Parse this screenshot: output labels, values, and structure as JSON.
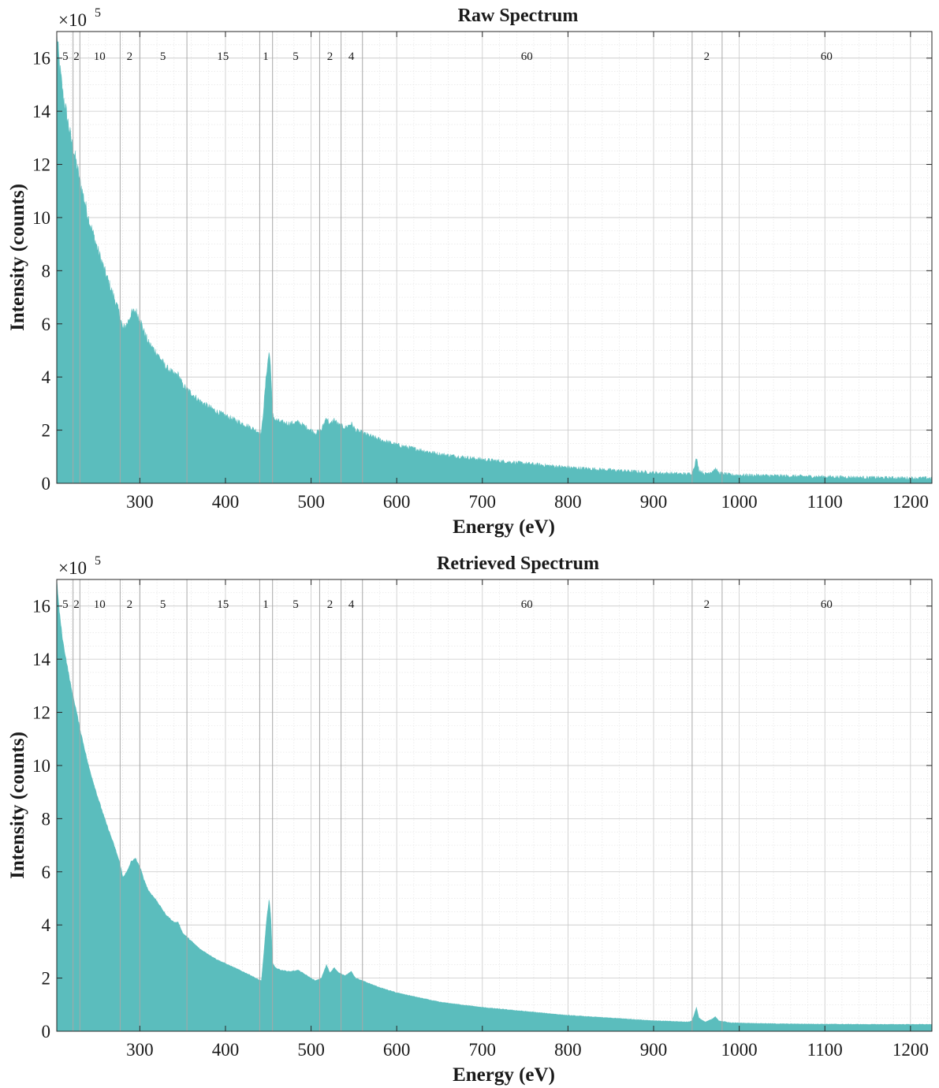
{
  "figure": {
    "accent_color": "#5bbdbd"
  },
  "chart_data": [
    {
      "type": "area",
      "title": "Raw Spectrum",
      "xlabel": "Energy (eV)",
      "ylabel": "Intensity (counts)",
      "y_exponent_label": "×10",
      "y_exponent": "5",
      "xlim": [
        203,
        1225
      ],
      "ylim": [
        0,
        1.7
      ],
      "x_ticks": [
        300,
        400,
        500,
        600,
        700,
        800,
        900,
        1000,
        1100,
        1200
      ],
      "x_tick_labels": [
        "300",
        "400",
        "500",
        "600",
        "700",
        "800",
        "900",
        "1000",
        "1100",
        "1200"
      ],
      "y_ticks": [
        0,
        0.2,
        0.4,
        0.6,
        0.8,
        1.0,
        1.2,
        1.4,
        1.6
      ],
      "y_tick_labels": [
        "0",
        "2",
        "4",
        "6",
        "8",
        "10",
        "12",
        "14",
        "16"
      ],
      "grid": true,
      "noisy": true,
      "region_boundaries": [
        222,
        230,
        277,
        300,
        355,
        440,
        455,
        510,
        535,
        560,
        945,
        980
      ],
      "region_labels": [
        {
          "x": 213,
          "text": "5"
        },
        {
          "x": 226,
          "text": "2"
        },
        {
          "x": 253,
          "text": "10"
        },
        {
          "x": 288,
          "text": "2"
        },
        {
          "x": 327,
          "text": "5"
        },
        {
          "x": 397,
          "text": "15"
        },
        {
          "x": 447,
          "text": "1"
        },
        {
          "x": 482,
          "text": "5"
        },
        {
          "x": 522,
          "text": "2"
        },
        {
          "x": 547,
          "text": "4"
        },
        {
          "x": 752,
          "text": "60"
        },
        {
          "x": 962,
          "text": "2"
        },
        {
          "x": 1102,
          "text": "60"
        }
      ],
      "series": [
        {
          "color": "#5bbdbd",
          "points": [
            [
              203,
              1.7
            ],
            [
              206,
              1.58
            ],
            [
              210,
              1.47
            ],
            [
              215,
              1.38
            ],
            [
              220,
              1.29
            ],
            [
              225,
              1.22
            ],
            [
              230,
              1.14
            ],
            [
              235,
              1.07
            ],
            [
              240,
              1.0
            ],
            [
              250,
              0.89
            ],
            [
              260,
              0.79
            ],
            [
              270,
              0.7
            ],
            [
              277,
              0.63
            ],
            [
              280,
              0.58
            ],
            [
              285,
              0.6
            ],
            [
              290,
              0.64
            ],
            [
              295,
              0.65
            ],
            [
              300,
              0.62
            ],
            [
              305,
              0.57
            ],
            [
              310,
              0.53
            ],
            [
              320,
              0.49
            ],
            [
              330,
              0.44
            ],
            [
              340,
              0.41
            ],
            [
              345,
              0.41
            ],
            [
              350,
              0.37
            ],
            [
              360,
              0.34
            ],
            [
              370,
              0.31
            ],
            [
              380,
              0.29
            ],
            [
              390,
              0.27
            ],
            [
              400,
              0.255
            ],
            [
              410,
              0.24
            ],
            [
              420,
              0.225
            ],
            [
              430,
              0.21
            ],
            [
              438,
              0.195
            ],
            [
              442,
              0.19
            ],
            [
              445,
              0.3
            ],
            [
              448,
              0.42
            ],
            [
              450,
              0.47
            ],
            [
              451,
              0.5
            ],
            [
              453,
              0.43
            ],
            [
              455,
              0.26
            ],
            [
              458,
              0.24
            ],
            [
              465,
              0.23
            ],
            [
              475,
              0.225
            ],
            [
              485,
              0.23
            ],
            [
              495,
              0.21
            ],
            [
              505,
              0.19
            ],
            [
              512,
              0.2
            ],
            [
              518,
              0.25
            ],
            [
              522,
              0.22
            ],
            [
              527,
              0.24
            ],
            [
              532,
              0.22
            ],
            [
              540,
              0.21
            ],
            [
              547,
              0.225
            ],
            [
              552,
              0.2
            ],
            [
              560,
              0.19
            ],
            [
              580,
              0.165
            ],
            [
              600,
              0.145
            ],
            [
              650,
              0.11
            ],
            [
              700,
              0.09
            ],
            [
              750,
              0.075
            ],
            [
              800,
              0.06
            ],
            [
              850,
              0.05
            ],
            [
              900,
              0.04
            ],
            [
              940,
              0.035
            ],
            [
              945,
              0.04
            ],
            [
              948,
              0.07
            ],
            [
              950,
              0.095
            ],
            [
              953,
              0.05
            ],
            [
              960,
              0.035
            ],
            [
              968,
              0.045
            ],
            [
              972,
              0.055
            ],
            [
              976,
              0.04
            ],
            [
              990,
              0.032
            ],
            [
              1050,
              0.028
            ],
            [
              1100,
              0.025
            ],
            [
              1150,
              0.022
            ],
            [
              1200,
              0.02
            ],
            [
              1225,
              0.02
            ]
          ]
        }
      ]
    },
    {
      "type": "area",
      "title": "Retrieved Spectrum",
      "xlabel": "Energy (eV)",
      "ylabel": "Intensity (counts)",
      "y_exponent_label": "×10",
      "y_exponent": "5",
      "xlim": [
        203,
        1225
      ],
      "ylim": [
        0,
        1.7
      ],
      "x_ticks": [
        300,
        400,
        500,
        600,
        700,
        800,
        900,
        1000,
        1100,
        1200
      ],
      "x_tick_labels": [
        "300",
        "400",
        "500",
        "600",
        "700",
        "800",
        "900",
        "1000",
        "1100",
        "1200"
      ],
      "y_ticks": [
        0,
        0.2,
        0.4,
        0.6,
        0.8,
        1.0,
        1.2,
        1.4,
        1.6
      ],
      "y_tick_labels": [
        "0",
        "2",
        "4",
        "6",
        "8",
        "10",
        "12",
        "14",
        "16"
      ],
      "grid": true,
      "noisy": false,
      "region_boundaries": [
        222,
        230,
        277,
        300,
        355,
        440,
        455,
        510,
        535,
        560,
        945,
        980
      ],
      "region_labels": [
        {
          "x": 213,
          "text": "5"
        },
        {
          "x": 226,
          "text": "2"
        },
        {
          "x": 253,
          "text": "10"
        },
        {
          "x": 288,
          "text": "2"
        },
        {
          "x": 327,
          "text": "5"
        },
        {
          "x": 397,
          "text": "15"
        },
        {
          "x": 447,
          "text": "1"
        },
        {
          "x": 482,
          "text": "5"
        },
        {
          "x": 522,
          "text": "2"
        },
        {
          "x": 547,
          "text": "4"
        },
        {
          "x": 752,
          "text": "60"
        },
        {
          "x": 962,
          "text": "2"
        },
        {
          "x": 1102,
          "text": "60"
        }
      ],
      "series": [
        {
          "color": "#5bbdbd",
          "points": [
            [
              203,
              1.7
            ],
            [
              206,
              1.58
            ],
            [
              210,
              1.47
            ],
            [
              215,
              1.38
            ],
            [
              220,
              1.29
            ],
            [
              225,
              1.22
            ],
            [
              230,
              1.14
            ],
            [
              235,
              1.07
            ],
            [
              240,
              1.0
            ],
            [
              250,
              0.89
            ],
            [
              260,
              0.79
            ],
            [
              270,
              0.7
            ],
            [
              277,
              0.63
            ],
            [
              280,
              0.58
            ],
            [
              285,
              0.6
            ],
            [
              290,
              0.64
            ],
            [
              295,
              0.65
            ],
            [
              300,
              0.62
            ],
            [
              305,
              0.57
            ],
            [
              310,
              0.53
            ],
            [
              320,
              0.49
            ],
            [
              330,
              0.44
            ],
            [
              340,
              0.41
            ],
            [
              345,
              0.41
            ],
            [
              350,
              0.37
            ],
            [
              360,
              0.34
            ],
            [
              370,
              0.31
            ],
            [
              380,
              0.29
            ],
            [
              390,
              0.27
            ],
            [
              400,
              0.255
            ],
            [
              410,
              0.24
            ],
            [
              420,
              0.225
            ],
            [
              430,
              0.21
            ],
            [
              438,
              0.195
            ],
            [
              442,
              0.19
            ],
            [
              445,
              0.3
            ],
            [
              448,
              0.42
            ],
            [
              450,
              0.47
            ],
            [
              451,
              0.5
            ],
            [
              453,
              0.43
            ],
            [
              455,
              0.26
            ],
            [
              458,
              0.24
            ],
            [
              465,
              0.23
            ],
            [
              475,
              0.225
            ],
            [
              485,
              0.23
            ],
            [
              495,
              0.21
            ],
            [
              505,
              0.19
            ],
            [
              512,
              0.2
            ],
            [
              518,
              0.25
            ],
            [
              522,
              0.22
            ],
            [
              527,
              0.24
            ],
            [
              532,
              0.22
            ],
            [
              540,
              0.21
            ],
            [
              547,
              0.225
            ],
            [
              552,
              0.2
            ],
            [
              560,
              0.19
            ],
            [
              580,
              0.165
            ],
            [
              600,
              0.145
            ],
            [
              650,
              0.11
            ],
            [
              700,
              0.09
            ],
            [
              750,
              0.075
            ],
            [
              800,
              0.06
            ],
            [
              850,
              0.05
            ],
            [
              900,
              0.04
            ],
            [
              940,
              0.035
            ],
            [
              945,
              0.04
            ],
            [
              948,
              0.07
            ],
            [
              950,
              0.09
            ],
            [
              953,
              0.05
            ],
            [
              960,
              0.035
            ],
            [
              968,
              0.045
            ],
            [
              972,
              0.055
            ],
            [
              976,
              0.04
            ],
            [
              990,
              0.032
            ],
            [
              1050,
              0.028
            ],
            [
              1100,
              0.027
            ],
            [
              1150,
              0.026
            ],
            [
              1200,
              0.026
            ],
            [
              1225,
              0.026
            ]
          ]
        }
      ]
    }
  ]
}
